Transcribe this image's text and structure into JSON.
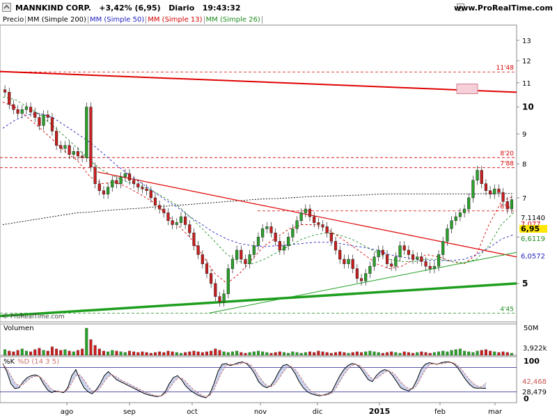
{
  "header": {
    "symbol": "MANNKIND CORP.",
    "change": "+3,42% (6,95)",
    "period": "Diario",
    "time": "19:43:32",
    "site": "www.ProRealTime.com",
    "watermark": "© ProRealTime.com"
  },
  "legend": [
    {
      "label": "Precio",
      "color": "#000000"
    },
    {
      "label": "MM (Simple 200)",
      "color": "#000000"
    },
    {
      "label": "MM (Simple 50)",
      "color": "#1f1fbf"
    },
    {
      "label": "MM (Simple 13)",
      "color": "#d40000"
    },
    {
      "label": "MM (Simple 26)",
      "color": "#1e8a1e"
    }
  ],
  "colors": {
    "up": "#2aa02a",
    "down": "#c81e1e",
    "ma200": "#000000",
    "ma50": "#1f1fbf",
    "ma13": "#d40000",
    "ma26": "#1e8a1e",
    "trend_red": "#e00000",
    "trend_green": "#1e9e1e"
  },
  "chart_data": {
    "type": "candlestick",
    "y_axis": {
      "min": 4.3,
      "max": 13.8,
      "scale": "log",
      "ticks": [
        "13",
        "12",
        "11",
        "10",
        "9",
        "8",
        "7",
        "6",
        "5"
      ]
    },
    "x_ticks": [
      "ago",
      "sep",
      "oct",
      "nov",
      "dic",
      "2015",
      "feb",
      "mar"
    ],
    "levels": [
      {
        "value": 11.48,
        "label": "11'48"
      },
      {
        "value": 8.2,
        "label": "8'20"
      },
      {
        "value": 7.88,
        "label": "7'88"
      },
      {
        "value": 6.65,
        "label": "6'65"
      },
      {
        "value": 4.45,
        "label": "4'45"
      }
    ],
    "price_tags": [
      "7,1140",
      "7,077",
      "6,95",
      "6,6119",
      "6,0572"
    ],
    "close": [
      10.6,
      10.1,
      9.9,
      9.75,
      9.9,
      10.0,
      9.8,
      9.6,
      9.3,
      9.7,
      9.6,
      9.1,
      8.6,
      8.5,
      8.6,
      8.3,
      8.4,
      8.25,
      8.2,
      10.0,
      7.9,
      7.4,
      7.2,
      7.1,
      7.3,
      7.5,
      7.4,
      7.6,
      7.7,
      7.5,
      7.4,
      7.3,
      7.25,
      7.2,
      7.0,
      6.8,
      6.7,
      6.6,
      6.4,
      6.3,
      6.35,
      6.5,
      6.3,
      6.1,
      5.8,
      5.6,
      5.4,
      5.2,
      5.0,
      4.75,
      4.65,
      4.8,
      5.3,
      5.5,
      5.7,
      5.5,
      5.4,
      5.6,
      5.8,
      6.0,
      6.2,
      6.25,
      6.1,
      5.9,
      5.7,
      5.8,
      6.0,
      6.2,
      6.4,
      6.6,
      6.7,
      6.5,
      6.35,
      6.3,
      6.25,
      6.1,
      5.9,
      5.7,
      5.5,
      5.4,
      5.5,
      5.3,
      5.1,
      5.05,
      5.2,
      5.35,
      5.55,
      5.7,
      5.6,
      5.4,
      5.35,
      5.55,
      5.8,
      5.7,
      5.6,
      5.5,
      5.55,
      5.45,
      5.35,
      5.3,
      5.35,
      5.6,
      5.9,
      6.2,
      6.4,
      6.5,
      6.6,
      6.7,
      7.0,
      7.5,
      7.8,
      7.4,
      7.2,
      7.1,
      7.25,
      7.15,
      6.9,
      6.7,
      6.95
    ],
    "ma200": [
      6.3,
      6.35,
      6.4,
      6.45,
      6.5,
      6.55,
      6.6,
      6.62,
      6.65,
      6.68,
      6.7,
      6.72,
      6.75,
      6.77,
      6.8,
      6.82,
      6.85,
      6.87,
      6.9,
      6.92,
      6.95,
      6.97,
      6.98,
      7.0,
      7.02,
      7.04,
      7.05,
      7.06,
      7.07,
      7.08,
      7.1,
      7.11,
      7.11,
      7.11,
      7.11,
      7.11,
      7.11,
      7.11,
      7.11,
      7.12,
      7.12,
      7.12
    ],
    "ma50": [
      9.2,
      9.5,
      9.7,
      9.75,
      9.6,
      9.3,
      9.0,
      8.7,
      8.35,
      8.0,
      7.7,
      7.45,
      7.2,
      6.95,
      6.75,
      6.5,
      6.3,
      6.1,
      5.95,
      5.85,
      5.8,
      5.78,
      5.8,
      5.82,
      5.85,
      5.88,
      5.88,
      5.85,
      5.8,
      5.76,
      5.7,
      5.6,
      5.55,
      5.5,
      5.48,
      5.47,
      5.47,
      5.5,
      5.6,
      5.75,
      5.95,
      6.06
    ],
    "ma13": [
      10.2,
      10.0,
      9.6,
      9.2,
      8.8,
      8.4,
      8.1,
      7.6,
      7.4,
      7.45,
      7.3,
      7.1,
      6.9,
      6.6,
      6.3,
      6.0,
      5.6,
      5.2,
      5.0,
      5.2,
      5.5,
      5.8,
      6.0,
      6.2,
      6.3,
      6.3,
      6.2,
      6.0,
      5.8,
      5.6,
      5.4,
      5.3,
      5.35,
      5.5,
      5.6,
      5.55,
      5.45,
      5.4,
      5.6,
      6.3,
      6.9,
      7.05
    ],
    "ma26": [
      10.4,
      10.3,
      10.0,
      9.7,
      9.3,
      8.9,
      8.5,
      8.1,
      7.8,
      7.6,
      7.45,
      7.35,
      7.2,
      7.0,
      6.8,
      6.5,
      6.2,
      5.9,
      5.6,
      5.45,
      5.4,
      5.5,
      5.65,
      5.8,
      5.95,
      6.05,
      6.1,
      6.05,
      5.95,
      5.8,
      5.65,
      5.5,
      5.45,
      5.45,
      5.5,
      5.5,
      5.45,
      5.42,
      5.5,
      5.8,
      6.3,
      6.61
    ],
    "trendlines": [
      {
        "color": "red",
        "from": 11.5,
        "to": 10.6
      },
      {
        "color": "red",
        "from": 7.75,
        "to": 5.55
      },
      {
        "color": "green",
        "from": 4.4,
        "to": 5.0
      },
      {
        "color": "green",
        "from": 4.45,
        "to": 5.65
      }
    ],
    "volume": {
      "label": "Volumen",
      "ticks": [
        "50M",
        "3,922k"
      ],
      "values": [
        8,
        6,
        5,
        7,
        9,
        6,
        5,
        8,
        10,
        7,
        6,
        12,
        9,
        7,
        8,
        6,
        5,
        7,
        9,
        38,
        22,
        14,
        9,
        6,
        5,
        7,
        6,
        5,
        4,
        6,
        5,
        4,
        5,
        4,
        3,
        4,
        5,
        4,
        6,
        5,
        4,
        3,
        4,
        5,
        6,
        5,
        4,
        5,
        6,
        9,
        7,
        5,
        4,
        5,
        6,
        4,
        3,
        4,
        5,
        6,
        5,
        4,
        3,
        4,
        5,
        4,
        3,
        5,
        4,
        3,
        4,
        5,
        4,
        6,
        5,
        4,
        3,
        4,
        5,
        4,
        3,
        4,
        5,
        4,
        5,
        6,
        5,
        4,
        3,
        4,
        5,
        4,
        3,
        5,
        4,
        3,
        4,
        5,
        4,
        3,
        4,
        5,
        6,
        5,
        7,
        8,
        9,
        6,
        5,
        4,
        6,
        7,
        8,
        6,
        5,
        4,
        5,
        4,
        3,
        4
      ]
    },
    "stochastic": {
      "label_k": "%K",
      "label_d": "%D (14 3 5)",
      "ticks": [
        "100",
        "0"
      ],
      "level_upper": 80,
      "level_lower": 20,
      "value_d": "42,468",
      "value_k": "28,479",
      "k": [
        90,
        70,
        40,
        28,
        30,
        45,
        55,
        60,
        62,
        58,
        40,
        25,
        18,
        22,
        20,
        18,
        30,
        60,
        75,
        50,
        30,
        20,
        15,
        25,
        40,
        60,
        70,
        60,
        50,
        45,
        40,
        35,
        30,
        25,
        20,
        15,
        12,
        10,
        8,
        10,
        20,
        40,
        55,
        60,
        50,
        35,
        25,
        18,
        12,
        8,
        5,
        15,
        40,
        70,
        88,
        90,
        85,
        88,
        92,
        94,
        90,
        80,
        65,
        45,
        35,
        30,
        35,
        50,
        70,
        85,
        88,
        80,
        65,
        45,
        30,
        20,
        15,
        12,
        10,
        12,
        15,
        20,
        40,
        60,
        75,
        85,
        90,
        88,
        80,
        65,
        50,
        45,
        60,
        70,
        75,
        72,
        60,
        45,
        30,
        25,
        22,
        30,
        50,
        75,
        88,
        92,
        90,
        88,
        92,
        94,
        94,
        90,
        80,
        65,
        50,
        38,
        30,
        29,
        29,
        28.5
      ],
      "d": [
        88,
        78,
        60,
        42,
        35,
        38,
        47,
        55,
        58,
        58,
        50,
        38,
        26,
        22,
        20,
        20,
        25,
        42,
        60,
        62,
        50,
        34,
        22,
        20,
        30,
        45,
        58,
        62,
        57,
        50,
        45,
        40,
        35,
        30,
        25,
        20,
        16,
        12,
        10,
        10,
        15,
        27,
        42,
        53,
        55,
        46,
        35,
        25,
        18,
        12,
        8,
        10,
        25,
        48,
        70,
        85,
        88,
        87,
        88,
        91,
        92,
        87,
        76,
        60,
        46,
        36,
        32,
        39,
        52,
        68,
        80,
        84,
        76,
        62,
        46,
        32,
        22,
        16,
        13,
        11,
        12,
        16,
        28,
        45,
        62,
        75,
        85,
        88,
        85,
        76,
        62,
        52,
        52,
        60,
        68,
        72,
        68,
        58,
        45,
        34,
        28,
        27,
        36,
        55,
        74,
        86,
        90,
        89,
        89,
        91,
        93,
        92,
        86,
        75,
        62,
        50,
        40,
        34,
        32,
        42.5
      ]
    }
  }
}
